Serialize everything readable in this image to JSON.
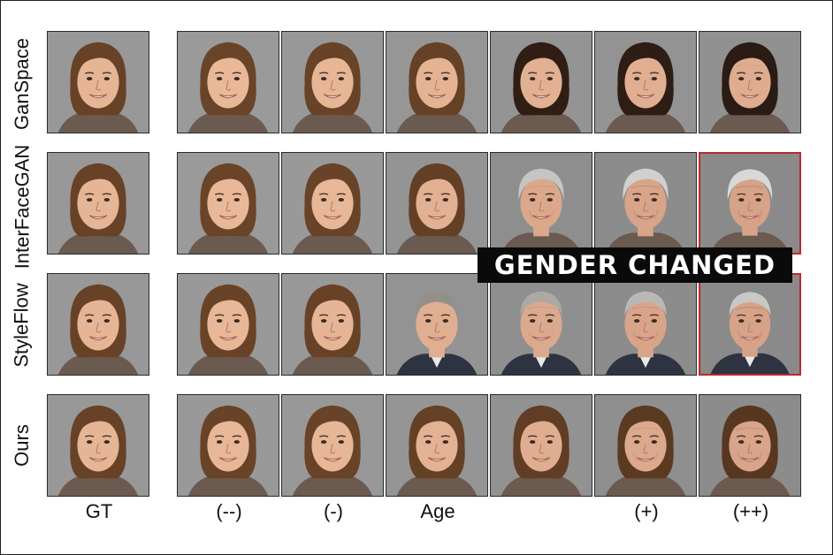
{
  "row_labels": [
    "GanSpace",
    "InterFaceGAN",
    "StyleFlow",
    "Ours"
  ],
  "column_labels": [
    "GT",
    "(--)",
    "(-)",
    "Age",
    "",
    "(+)",
    "(++)"
  ],
  "banner_text": "GENDER CHANGED",
  "colors": {
    "highlight": "#c0282d",
    "background_gray": "#8d8d8d",
    "hair": "#5a3a22"
  },
  "faces": [
    [
      {
        "style": "young",
        "age": 0.15
      },
      {
        "style": "young",
        "age": 0.0
      },
      {
        "style": "young",
        "age": 0.1
      },
      {
        "style": "young",
        "age": 0.25
      },
      {
        "style": "darkhair",
        "age": 0.35
      },
      {
        "style": "darkhair",
        "age": 0.45
      },
      {
        "style": "darkhair",
        "age": 0.55
      }
    ],
    [
      {
        "style": "young",
        "age": 0.15
      },
      {
        "style": "young",
        "age": 0.0
      },
      {
        "style": "young",
        "age": 0.05
      },
      {
        "style": "young",
        "age": 0.35
      },
      {
        "style": "gray",
        "age": 0.75
      },
      {
        "style": "gray",
        "age": 0.9
      },
      {
        "style": "gray",
        "age": 1.0
      }
    ],
    [
      {
        "style": "young",
        "age": 0.15
      },
      {
        "style": "young",
        "age": 0.05
      },
      {
        "style": "young",
        "age": 0.15
      },
      {
        "style": "male",
        "age": 0.45
      },
      {
        "style": "male",
        "age": 0.7
      },
      {
        "style": "male",
        "age": 0.85
      },
      {
        "style": "male",
        "age": 1.0
      }
    ],
    [
      {
        "style": "young",
        "age": 0.15
      },
      {
        "style": "young",
        "age": 0.05
      },
      {
        "style": "young",
        "age": 0.1
      },
      {
        "style": "young",
        "age": 0.3
      },
      {
        "style": "young",
        "age": 0.5
      },
      {
        "style": "young",
        "age": 0.7
      },
      {
        "style": "young",
        "age": 0.9
      }
    ]
  ],
  "highlighted": [
    [
      1,
      6
    ],
    [
      2,
      6
    ]
  ]
}
